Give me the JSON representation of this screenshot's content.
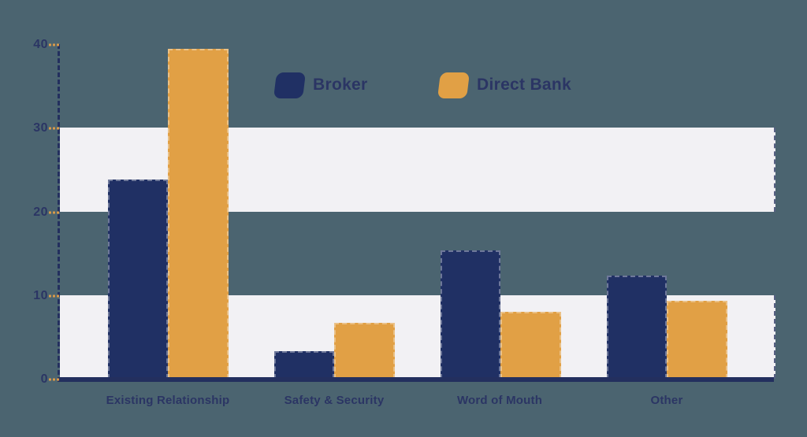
{
  "background_color": "#4b6470",
  "chart_data": {
    "type": "bar",
    "categories": [
      "Existing Relationship",
      "Safety & Security",
      "Word of Mouth",
      "Other"
    ],
    "series": [
      {
        "name": "Broker",
        "color": "#203064",
        "values": [
          23.8,
          3.3,
          15.3,
          12.3
        ]
      },
      {
        "name": "Direct Bank",
        "color": "#e1a045",
        "values": [
          39.4,
          6.7,
          8.0,
          9.3
        ]
      }
    ],
    "ylim": [
      0,
      40
    ],
    "yticks": [
      0,
      10,
      20,
      30,
      40
    ],
    "grid_bands": [
      [
        0,
        10
      ],
      [
        20,
        30
      ]
    ],
    "band_color": "#f2f1f4",
    "axis_color": "#232f5e",
    "tick_dash_color": "#d89a4a",
    "label_color": "#2b3564",
    "legend_position": "top-center",
    "grid": "horizontal-bands",
    "legend": [
      "Broker",
      "Direct Bank"
    ]
  }
}
